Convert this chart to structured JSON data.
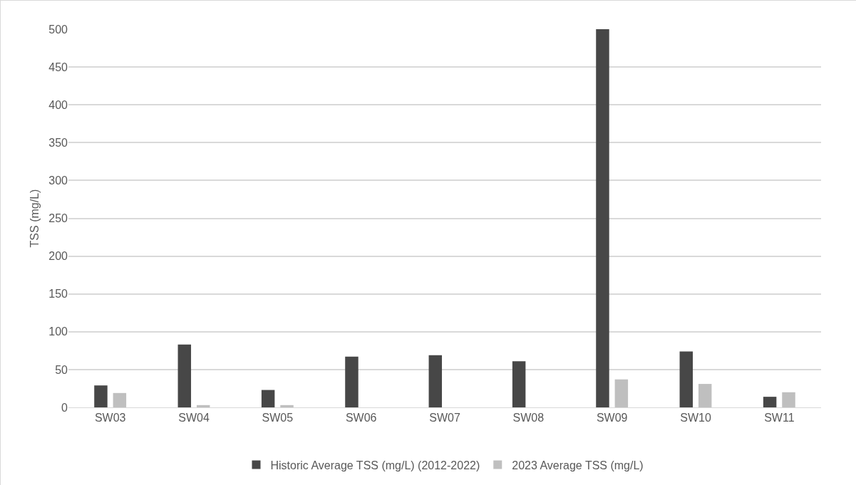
{
  "chart_data": {
    "type": "bar",
    "ylabel": "TSS (mg/L)",
    "categories": [
      "SW03",
      "SW04",
      "SW05",
      "SW06",
      "SW07",
      "SW08",
      "SW09",
      "SW10",
      "SW11"
    ],
    "series": [
      {
        "name": "Historic Average TSS (mg/L) (2012-2022)",
        "color": "#474747",
        "values": [
          29,
          83,
          23,
          67,
          69,
          61,
          500,
          74,
          14
        ]
      },
      {
        "name": "2023 Average TSS (mg/L)",
        "color": "#bfbfbf",
        "values": [
          19,
          3,
          3,
          0,
          0,
          0,
          37,
          31,
          20
        ]
      }
    ],
    "ylim": [
      0,
      500
    ],
    "yticks": [
      0,
      50,
      100,
      150,
      200,
      250,
      300,
      350,
      400,
      450,
      500
    ],
    "grid": "y",
    "legend": "bottom"
  }
}
